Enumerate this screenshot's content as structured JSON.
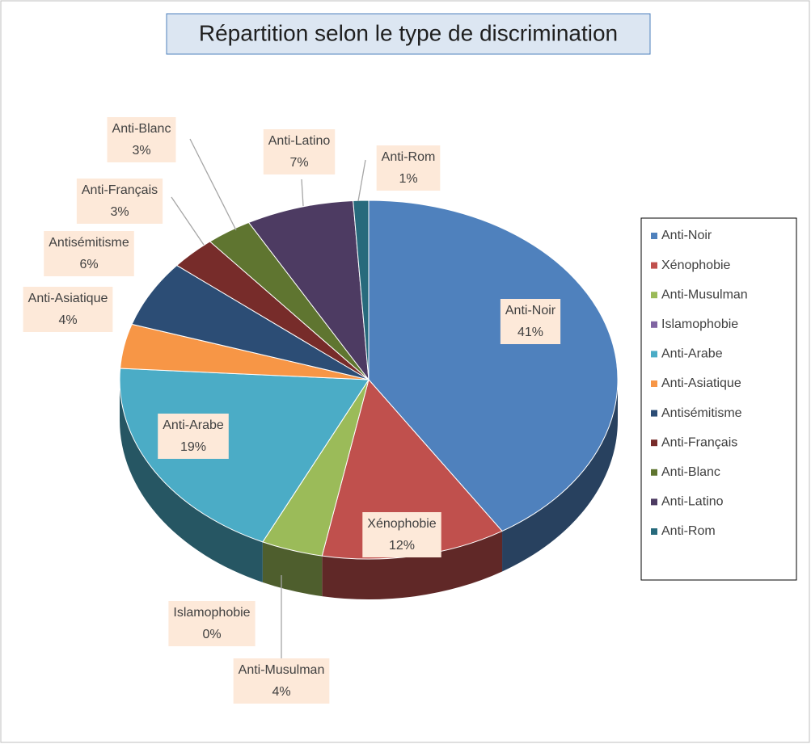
{
  "chart_data": {
    "type": "pie",
    "title": "Répartition selon le type de discrimination",
    "categories": [
      "Anti-Noir",
      "Xénophobie",
      "Anti-Musulman",
      "Islamophobie",
      "Anti-Arabe",
      "Anti-Asiatique",
      "Antisémitisme",
      "Anti-Français",
      "Anti-Blanc",
      "Anti-Latino",
      "Anti-Rom"
    ],
    "values": [
      41,
      12,
      4,
      0,
      19,
      4,
      6,
      3,
      3,
      7,
      1
    ],
    "value_labels": [
      "41%",
      "12%",
      "4%",
      "0%",
      "19%",
      "4%",
      "6%",
      "3%",
      "3%",
      "7%",
      "1%"
    ],
    "colors": [
      "#4f81bd",
      "#c0504d",
      "#9bbb59",
      "#8064a2",
      "#4bacc6",
      "#f79646",
      "#2c4d75",
      "#772c2a",
      "#5f7530",
      "#4d3b62",
      "#276a7c"
    ],
    "legend": "right"
  }
}
